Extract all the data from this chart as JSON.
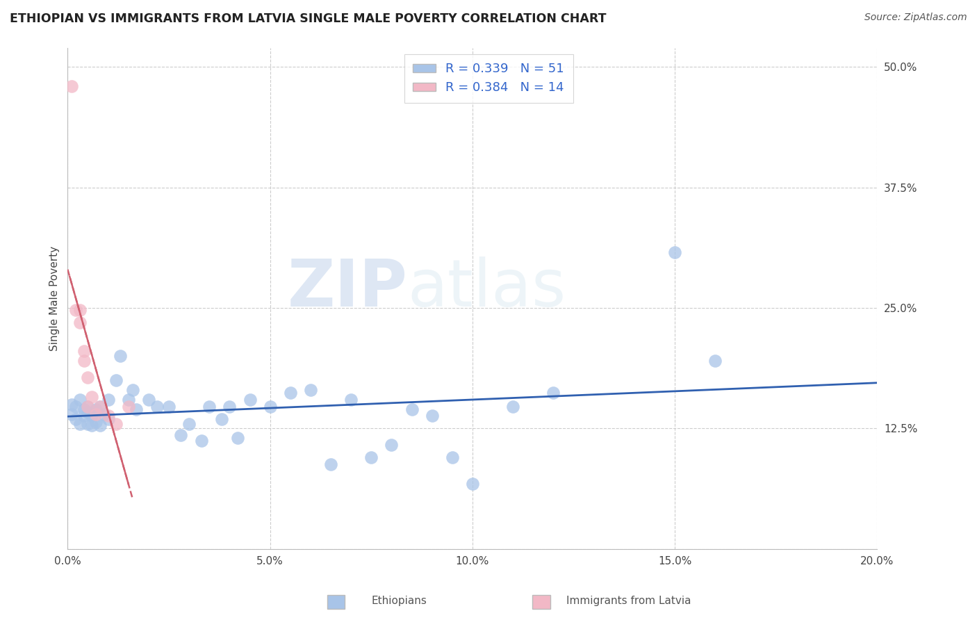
{
  "title": "ETHIOPIAN VS IMMIGRANTS FROM LATVIA SINGLE MALE POVERTY CORRELATION CHART",
  "source": "Source: ZipAtlas.com",
  "xlabel_label": "Ethiopians",
  "xlabel_label2": "Immigrants from Latvia",
  "ylabel": "Single Male Poverty",
  "xlim": [
    0.0,
    0.2
  ],
  "ylim": [
    0.0,
    0.52
  ],
  "xticks": [
    0.0,
    0.05,
    0.1,
    0.15,
    0.2
  ],
  "xticklabels": [
    "0.0%",
    "5.0%",
    "10.0%",
    "15.0%",
    "20.0%"
  ],
  "yticks": [
    0.0,
    0.125,
    0.25,
    0.375,
    0.5
  ],
  "yticklabels": [
    "",
    "12.5%",
    "25.0%",
    "37.5%",
    "50.0%"
  ],
  "blue_R": 0.339,
  "blue_N": 51,
  "pink_R": 0.384,
  "pink_N": 14,
  "blue_color": "#a8c4e8",
  "pink_color": "#f2b8c6",
  "blue_line_color": "#3060b0",
  "pink_line_color": "#d06070",
  "watermark_zip": "ZIP",
  "watermark_atlas": "atlas",
  "blue_scatter_x": [
    0.001,
    0.001,
    0.002,
    0.002,
    0.003,
    0.003,
    0.004,
    0.004,
    0.005,
    0.005,
    0.005,
    0.006,
    0.006,
    0.007,
    0.007,
    0.008,
    0.008,
    0.009,
    0.01,
    0.01,
    0.012,
    0.013,
    0.015,
    0.016,
    0.017,
    0.02,
    0.022,
    0.025,
    0.028,
    0.03,
    0.033,
    0.035,
    0.038,
    0.04,
    0.042,
    0.045,
    0.05,
    0.055,
    0.06,
    0.065,
    0.07,
    0.075,
    0.08,
    0.085,
    0.09,
    0.095,
    0.1,
    0.11,
    0.12,
    0.15,
    0.16
  ],
  "blue_scatter_y": [
    0.15,
    0.14,
    0.148,
    0.135,
    0.155,
    0.13,
    0.145,
    0.138,
    0.148,
    0.142,
    0.13,
    0.138,
    0.128,
    0.145,
    0.132,
    0.148,
    0.128,
    0.14,
    0.155,
    0.135,
    0.175,
    0.2,
    0.155,
    0.165,
    0.145,
    0.155,
    0.148,
    0.148,
    0.118,
    0.13,
    0.112,
    0.148,
    0.135,
    0.148,
    0.115,
    0.155,
    0.148,
    0.162,
    0.165,
    0.088,
    0.155,
    0.095,
    0.108,
    0.145,
    0.138,
    0.095,
    0.068,
    0.148,
    0.162,
    0.308,
    0.195
  ],
  "pink_scatter_x": [
    0.001,
    0.002,
    0.003,
    0.003,
    0.004,
    0.004,
    0.005,
    0.005,
    0.006,
    0.007,
    0.008,
    0.01,
    0.012,
    0.015
  ],
  "pink_scatter_y": [
    0.48,
    0.248,
    0.248,
    0.235,
    0.205,
    0.195,
    0.178,
    0.148,
    0.158,
    0.14,
    0.148,
    0.138,
    0.13,
    0.148
  ]
}
